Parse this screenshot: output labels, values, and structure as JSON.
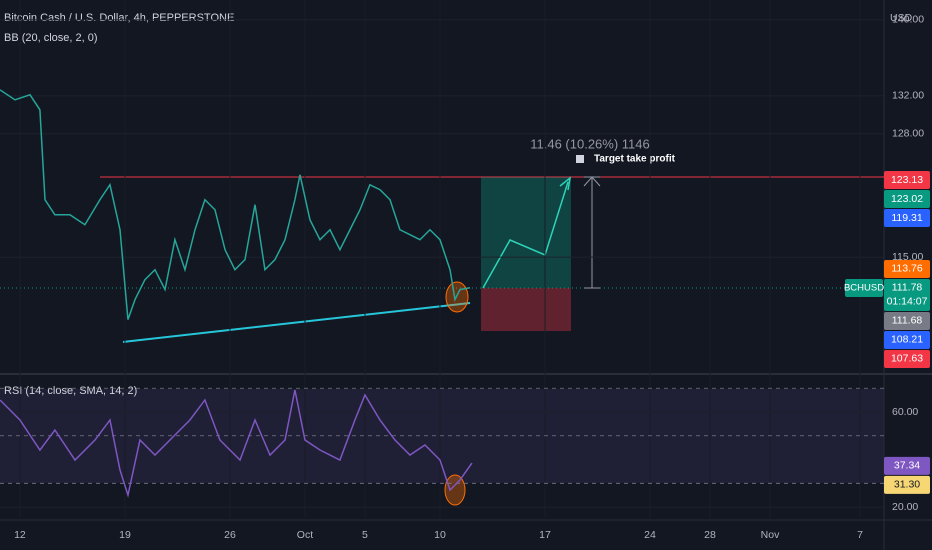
{
  "chart_data": [
    {
      "type": "line",
      "title": "Bitcoin Cash / U.S. Dollar, 4h, PEPPERSTONE",
      "indicator": "BB (20, close, 2, 0)",
      "currency": "USD",
      "measure": "11.46 (10.26%) 1146",
      "target_label": "Target take profit",
      "countdown": "01:14:07",
      "xlim": [
        -1.33,
        57.6
      ],
      "xticks": [
        {
          "value": 0,
          "label": "12"
        },
        {
          "value": 7,
          "label": "19"
        },
        {
          "value": 14,
          "label": "26"
        },
        {
          "value": 19,
          "label": "Oct"
        },
        {
          "value": 23,
          "label": "5"
        },
        {
          "value": 28,
          "label": "10"
        },
        {
          "value": 35,
          "label": "17"
        },
        {
          "value": 42,
          "label": "24"
        },
        {
          "value": 46,
          "label": "28"
        },
        {
          "value": 50,
          "label": "Nov"
        },
        {
          "value": 56,
          "label": "7"
        }
      ],
      "ylim": [
        102.9,
        142.1
      ],
      "yticks": [
        {
          "value": 140,
          "label": "140.00"
        },
        {
          "value": 132,
          "label": "132.00"
        },
        {
          "value": 128,
          "label": "128.00"
        },
        {
          "value": 115,
          "label": "115.00"
        }
      ],
      "series": [
        {
          "name": "BCHUSD",
          "color": "#26a69a",
          "x": [
            -1.33,
            -0.33,
            0.67,
            1.33,
            1.67,
            2.33,
            3.33,
            4.33,
            5.33,
            6.0,
            6.67,
            7.2,
            7.67,
            8.33,
            9.0,
            9.67,
            10.33,
            11.0,
            11.67,
            12.33,
            13.0,
            13.67,
            14.33,
            15.0,
            15.67,
            16.33,
            17.0,
            17.67,
            18.33,
            18.67,
            19.33,
            20.0,
            20.67,
            21.33,
            22.0,
            22.67,
            23.33,
            24.0,
            24.67,
            25.33,
            26.0,
            26.67,
            27.33,
            28.0,
            28.67,
            29.0,
            29.33,
            30.0
          ],
          "values": [
            132.63,
            131.58,
            132.11,
            130.53,
            121.05,
            119.47,
            119.47,
            118.42,
            121.05,
            122.63,
            117.89,
            108.42,
            110.53,
            112.63,
            113.68,
            111.58,
            116.84,
            113.68,
            117.89,
            121.05,
            120.0,
            115.79,
            113.68,
            114.74,
            120.53,
            113.68,
            114.74,
            116.84,
            121.05,
            123.68,
            118.95,
            116.84,
            117.89,
            115.79,
            117.89,
            120.0,
            122.63,
            122.11,
            121.05,
            117.89,
            117.37,
            116.84,
            117.89,
            116.84,
            113.68,
            110.53,
            111.58,
            111.78
          ]
        }
      ],
      "price_tags": [
        {
          "value": 123.13,
          "color": "#f23645"
        },
        {
          "value": 123.02,
          "color": "#089981"
        },
        {
          "value": 119.31,
          "color": "#2962ff"
        },
        {
          "value": 113.76,
          "color": "#ff6d00"
        },
        {
          "value": 111.78,
          "color": "#089981"
        },
        {
          "value": 111.68,
          "color": "#787b86"
        },
        {
          "value": 108.21,
          "color": "#2962ff"
        },
        {
          "value": 107.63,
          "color": "#f23645"
        }
      ]
    },
    {
      "type": "line",
      "title": "RSI (14, close, SMA, 14, 2)",
      "xlim": [
        -1.33,
        57.6
      ],
      "ylim": [
        15.4,
        74.3
      ],
      "yticks": [
        {
          "value": 60,
          "label": "60.00"
        },
        {
          "value": 20,
          "label": "20.00"
        }
      ],
      "levels": [
        70,
        50,
        30
      ],
      "series": [
        {
          "color": "#7e57c2",
          "x": [
            -1.33,
            0.0,
            1.33,
            2.33,
            3.67,
            5.0,
            6.0,
            6.67,
            7.2,
            8.0,
            9.0,
            10.0,
            11.33,
            12.33,
            13.33,
            14.67,
            15.67,
            16.67,
            17.67,
            18.33,
            19.0,
            20.0,
            21.33,
            22.33,
            23.0,
            24.0,
            25.0,
            26.0,
            27.0,
            28.0,
            28.67,
            29.33,
            30.13
          ],
          "values": [
            65.05,
            56.63,
            44.0,
            52.42,
            39.79,
            48.21,
            56.63,
            35.58,
            25.05,
            48.21,
            41.89,
            48.21,
            56.63,
            65.05,
            48.21,
            39.79,
            56.63,
            41.89,
            48.21,
            69.26,
            48.21,
            44.0,
            39.79,
            56.63,
            67.16,
            56.63,
            48.21,
            41.89,
            46.11,
            39.79,
            27.16,
            31.37,
            38.53
          ]
        }
      ],
      "price_tags": [
        {
          "value": 37.34,
          "color": "#7e57c2"
        },
        {
          "value": 31.3,
          "label": "31.30",
          "color": "#f7d774"
        }
      ]
    }
  ]
}
